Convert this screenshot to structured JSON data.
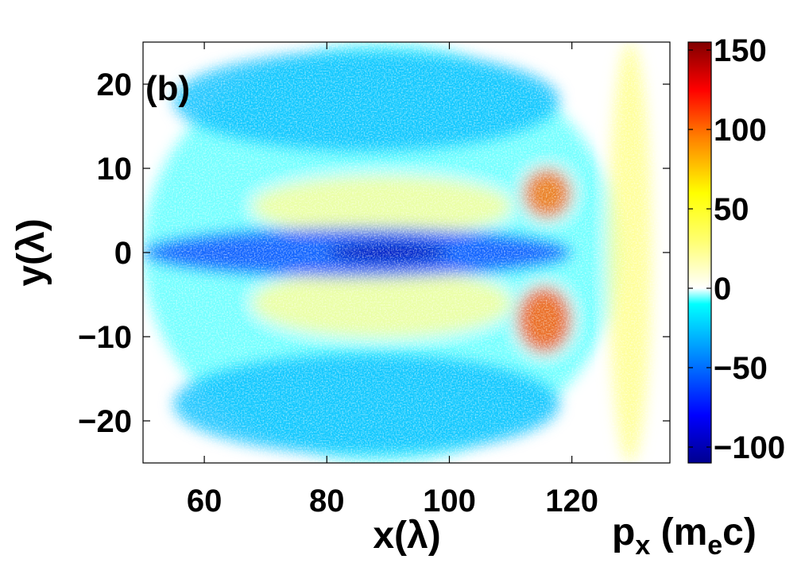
{
  "chart_data": {
    "type": "heatmap",
    "panel_label": "(b)",
    "xlabel": "x(λ)",
    "ylabel": "y(λ)",
    "xlim": [
      50,
      136
    ],
    "ylim": [
      -25,
      25
    ],
    "x_ticks": [
      {
        "value": 60,
        "label": "60"
      },
      {
        "value": 80,
        "label": "80"
      },
      {
        "value": 100,
        "label": "100"
      },
      {
        "value": 120,
        "label": "120"
      }
    ],
    "y_ticks": [
      {
        "value": 20,
        "label": "20"
      },
      {
        "value": 10,
        "label": "10"
      },
      {
        "value": 0,
        "label": "0"
      },
      {
        "value": -10,
        "label": "−10"
      },
      {
        "value": -20,
        "label": "−20"
      }
    ],
    "colorbar": {
      "label": "p",
      "label_sub": "x",
      "unit_prefix": " (m",
      "unit_sub": "e",
      "unit_suffix": "c)",
      "range": [
        -110,
        155
      ],
      "ticks": [
        {
          "value": 150,
          "label": "150"
        },
        {
          "value": 100,
          "label": "100"
        },
        {
          "value": 50,
          "label": "50"
        },
        {
          "value": 0,
          "label": "0"
        },
        {
          "value": -50,
          "label": "−50"
        },
        {
          "value": -100,
          "label": "−100"
        }
      ],
      "colormap": [
        {
          "value": -110,
          "color": "#00008f"
        },
        {
          "value": -80,
          "color": "#0000ff"
        },
        {
          "value": -45,
          "color": "#0080ff"
        },
        {
          "value": -10,
          "color": "#00ffff"
        },
        {
          "value": 0,
          "color": "#ffffff"
        },
        {
          "value": 30,
          "color": "#ffff70"
        },
        {
          "value": 60,
          "color": "#ffff00"
        },
        {
          "value": 95,
          "color": "#ff8000"
        },
        {
          "value": 125,
          "color": "#ff0000"
        },
        {
          "value": 155,
          "color": "#800000"
        }
      ]
    },
    "regions": [
      {
        "name": "background-electrons",
        "x": [
          50,
          128
        ],
        "y": [
          -25,
          25
        ],
        "px": -10
      },
      {
        "name": "upper-sheath",
        "x": [
          55,
          118
        ],
        "y": [
          12,
          24
        ],
        "px": -28
      },
      {
        "name": "lower-sheath",
        "x": [
          55,
          118
        ],
        "y": [
          -24,
          -12
        ],
        "px": -28
      },
      {
        "name": "upper-warm-layer",
        "x": [
          68,
          110
        ],
        "y": [
          2,
          9
        ],
        "px": 22
      },
      {
        "name": "lower-warm-layer",
        "x": [
          68,
          110
        ],
        "y": [
          -10,
          -2
        ],
        "px": 22
      },
      {
        "name": "central-return-current",
        "x": [
          50,
          120
        ],
        "y": [
          -3,
          3
        ],
        "px": -60
      },
      {
        "name": "core-channel",
        "x": [
          80,
          100
        ],
        "y": [
          -1.2,
          1.2
        ],
        "px": -100
      },
      {
        "name": "upper-hot-spot",
        "x": [
          112,
          120
        ],
        "y": [
          4,
          10
        ],
        "px": 100
      },
      {
        "name": "lower-hot-spot",
        "x": [
          111,
          120
        ],
        "y": [
          -12,
          -4
        ],
        "px": 105
      },
      {
        "name": "front-wave-fringes",
        "x": [
          126,
          133
        ],
        "y": [
          -25,
          25
        ],
        "px": 25
      }
    ]
  }
}
